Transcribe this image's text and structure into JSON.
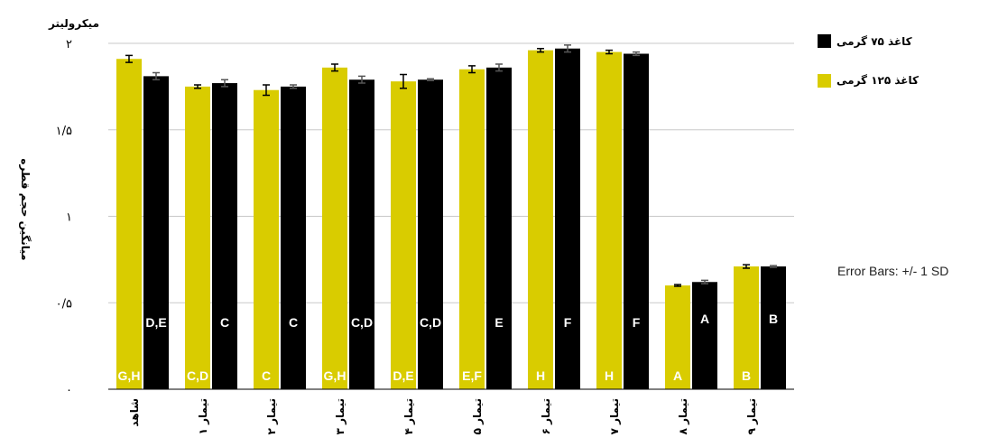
{
  "chart_data": {
    "type": "bar",
    "unit_label": "میکرولیتر",
    "ylabel": "میانگین حجم قطره",
    "ylim": [
      0,
      2
    ],
    "yticks": [
      0,
      0.5,
      1,
      1.5,
      2
    ],
    "ytick_labels": [
      "۰",
      "۰/۵",
      "۱",
      "۱/۵",
      "۲"
    ],
    "grid": true,
    "legend_position": "top-right",
    "categories": [
      "شاهد",
      "تیمار ۱",
      "تیمار ۲",
      "تیمار ۳",
      "تیمار ۴",
      "تیمار ۵",
      "تیمار ۶",
      "تیمار ۷",
      "تیمار ۸",
      "تیمار ۹"
    ],
    "series": [
      {
        "name": "کاغذ ۱۲۵ گرمی",
        "color": "#d9cc00",
        "values": [
          1.91,
          1.75,
          1.73,
          1.86,
          1.78,
          1.85,
          1.96,
          1.95,
          0.6,
          0.71
        ],
        "errors": [
          0.02,
          0.01,
          0.03,
          0.02,
          0.04,
          0.02,
          0.01,
          0.01,
          0.005,
          0.01
        ],
        "labels": [
          "G,H",
          "C,D",
          "C",
          "G,H",
          "D,E",
          "E,F",
          "H",
          "H",
          "A",
          "B"
        ]
      },
      {
        "name": "کاغذ ۷۵ گرمی",
        "color": "#000000",
        "values": [
          1.81,
          1.77,
          1.75,
          1.79,
          1.79,
          1.86,
          1.97,
          1.94,
          0.62,
          0.71
        ],
        "errors": [
          0.02,
          0.02,
          0.01,
          0.02,
          0.005,
          0.02,
          0.02,
          0.01,
          0.01,
          0.005
        ],
        "labels": [
          "D,E",
          "C",
          "C",
          "C,D",
          "C,D",
          "E",
          "F",
          "F",
          "A",
          "B"
        ]
      }
    ],
    "annotation": "Error Bars: +/- 1 SD"
  }
}
